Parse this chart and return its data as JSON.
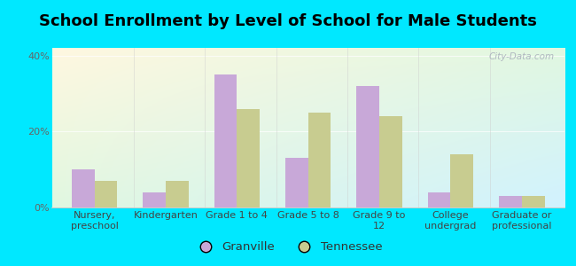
{
  "title": "School Enrollment by Level of School for Male Students",
  "categories": [
    "Nursery,\npreschool",
    "Kindergarten",
    "Grade 1 to 4",
    "Grade 5 to 8",
    "Grade 9 to\n12",
    "College\nundergrad",
    "Graduate or\nprofessional"
  ],
  "granville": [
    10.0,
    4.0,
    35.0,
    13.0,
    32.0,
    4.0,
    3.0
  ],
  "tennessee": [
    7.0,
    7.0,
    26.0,
    25.0,
    24.0,
    14.0,
    3.0
  ],
  "granville_color": "#c8a8d8",
  "tennessee_color": "#c8cc90",
  "background_outer": "#00e8ff",
  "ylim": [
    0,
    42
  ],
  "yticks": [
    0,
    20,
    40
  ],
  "ytick_labels": [
    "0%",
    "20%",
    "40%"
  ],
  "watermark": "City-Data.com",
  "legend_granville": "Granville",
  "legend_tennessee": "Tennessee",
  "bar_width": 0.32,
  "title_fontsize": 13,
  "tick_fontsize": 8
}
